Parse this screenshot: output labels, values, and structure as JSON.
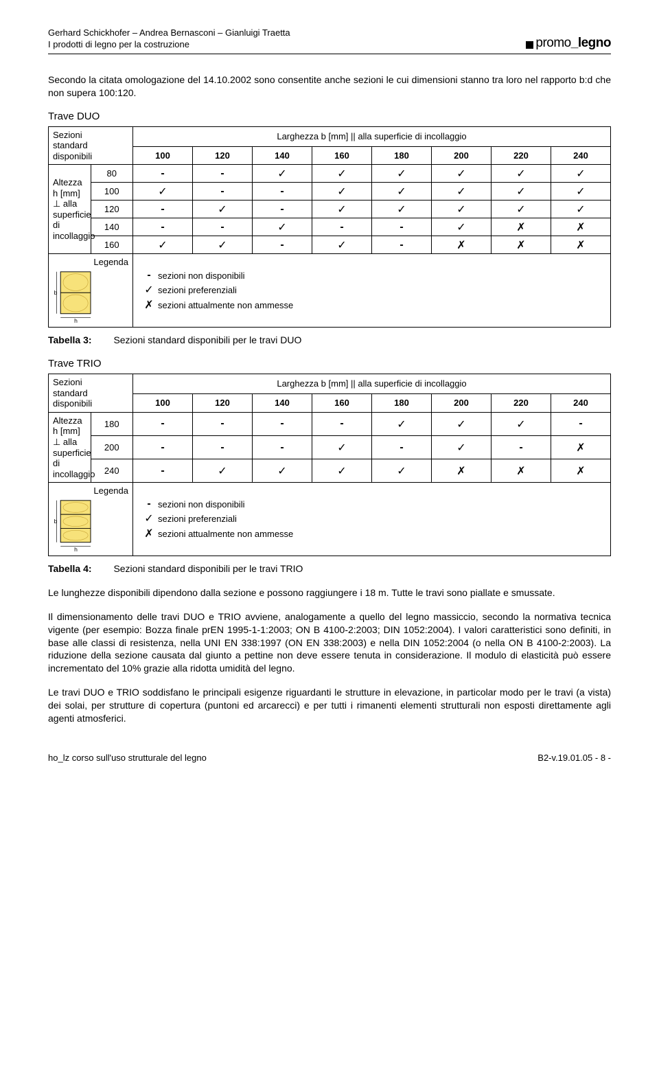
{
  "header": {
    "authors": "Gerhard Schickhofer – Andrea Bernasconi – Gianluigi Traetta",
    "subtitle": "I prodotti di legno per la costruzione",
    "brand1": "promo",
    "brand2": "legno"
  },
  "intro": "Secondo la citata omologazione del 14.10.2002 sono consentite anche sezioni le cui dimensioni stanno tra loro nel rapporto b:d che non supera 100:120.",
  "duo": {
    "title": "Trave DUO",
    "corner": "Sezioni standard disponibili",
    "wideHead": "Larghezza b [mm] || alla superficie di incollaggio",
    "cols": [
      "100",
      "120",
      "140",
      "160",
      "180",
      "200",
      "220",
      "240"
    ],
    "rowHdrLines": [
      "Altezza h [mm]",
      "⊥ alla superficie",
      "di incollaggio"
    ],
    "rows": [
      {
        "k": "80",
        "v": [
          "-",
          "-",
          "t",
          "t",
          "t",
          "t",
          "t",
          "t"
        ]
      },
      {
        "k": "100",
        "v": [
          "t",
          "-",
          "-",
          "t",
          "t",
          "t",
          "t",
          "t"
        ]
      },
      {
        "k": "120",
        "v": [
          "-",
          "t",
          "-",
          "t",
          "t",
          "t",
          "t",
          "t"
        ]
      },
      {
        "k": "140",
        "v": [
          "-",
          "-",
          "t",
          "-",
          "-",
          "t",
          "x",
          "x"
        ]
      },
      {
        "k": "160",
        "v": [
          "t",
          "t",
          "-",
          "t",
          "-",
          "x",
          "x",
          "x"
        ]
      }
    ],
    "legendLabel": "Legenda",
    "legend": [
      {
        "s": "-",
        "txt": "sezioni non disponibili"
      },
      {
        "s": "t",
        "txt": "sezioni preferenziali"
      },
      {
        "s": "x",
        "txt": "sezioni attualmente non ammesse"
      }
    ],
    "caption": {
      "lbl": "Tabella 3:",
      "txt": "Sezioni standard disponibili per le travi DUO"
    }
  },
  "trio": {
    "title": "Trave TRIO",
    "corner": "Sezioni standard disponibili",
    "wideHead": "Larghezza b [mm] || alla superficie di incollaggio",
    "cols": [
      "100",
      "120",
      "140",
      "160",
      "180",
      "200",
      "220",
      "240"
    ],
    "rowHdrLines": [
      "Altezza h [mm]",
      "⊥ alla superficie",
      "di incollaggio"
    ],
    "rows": [
      {
        "k": "180",
        "v": [
          "-",
          "-",
          "-",
          "-",
          "t",
          "t",
          "t",
          "-"
        ]
      },
      {
        "k": "200",
        "v": [
          "-",
          "-",
          "-",
          "t",
          "-",
          "t",
          "-",
          "x"
        ]
      },
      {
        "k": "240",
        "v": [
          "-",
          "t",
          "t",
          "t",
          "t",
          "x",
          "x",
          "x"
        ]
      }
    ],
    "legendLabel": "Legenda",
    "legend": [
      {
        "s": "-",
        "txt": "sezioni non disponibili"
      },
      {
        "s": "t",
        "txt": "sezioni preferenziali"
      },
      {
        "s": "x",
        "txt": "sezioni attualmente non ammesse"
      }
    ],
    "caption": {
      "lbl": "Tabella 4:",
      "txt": "Sezioni standard disponibili per le travi TRIO"
    }
  },
  "body": {
    "p1": "Le lunghezze disponibili dipendono dalla sezione e possono raggiungere i 18 m. Tutte le travi sono piallate e smussate.",
    "p2": "Il dimensionamento delle travi DUO e TRIO avviene, analogamente a quello del legno massiccio, secondo la normativa tecnica vigente (per esempio: Bozza finale prEN 1995-1-1:2003; ON B 4100-2:2003; DIN 1052:2004). I valori caratteristici sono definiti, in base alle classi di resistenza, nella UNI EN 338:1997 (ON EN 338:2003) e nella DIN 1052:2004 (o nella ON B 4100-2:2003). La riduzione della sezione causata dal giunto a pettine non deve essere tenuta in considerazione. Il modulo di elasticità può essere incrementato del 10% grazie alla ridotta umidità del legno.",
    "p3": "Le travi DUO e TRIO soddisfano le principali esigenze riguardanti le strutture in elevazione, in particolar modo per le travi (a vista) dei solai, per strutture di copertura (puntoni ed arcarecci) e per tutti i rimanenti elementi strutturali non esposti direttamente agli agenti atmosferici."
  },
  "footer": {
    "left": "ho_lz    corso sull'uso strutturale del legno",
    "right": "B2-v.19.01.05 - 8 -"
  },
  "swatchColors": {
    "fill": "#f7e27a",
    "stroke": "#000000"
  }
}
